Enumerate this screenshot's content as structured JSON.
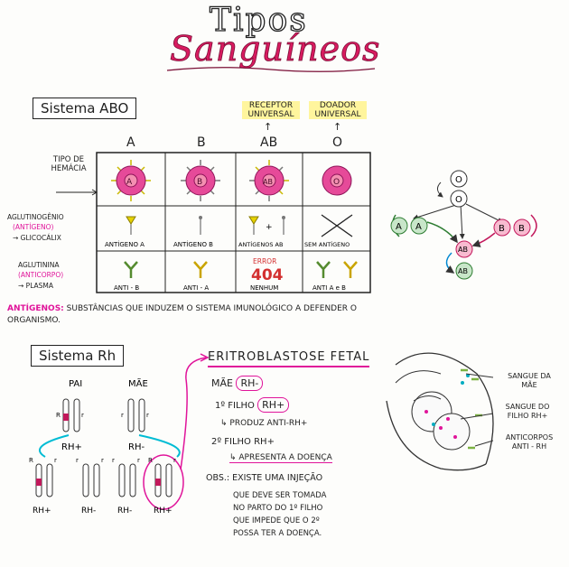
{
  "title": {
    "line1": "Tipos",
    "line2": "Sanguíneos"
  },
  "abo": {
    "label": "Sistema ABO",
    "receptor": "RECEPTOR UNIVERSAL",
    "doador": "DOADOR UNIVERSAL",
    "columns": [
      "A",
      "B",
      "AB",
      "O"
    ],
    "row_labels": {
      "tipo": "TIPO DE HEMÁCIA",
      "aglutinogenio": "AGLUTINOGÊNIO",
      "antigeno_paren": "(ANTÍGENO)",
      "glicocalix": "→ GLICOCÁLIX",
      "aglutinina": "AGLUTININA",
      "anticorpo_paren": "(ANTICORPO)",
      "plasma": "→ PLASMA"
    },
    "cells": {
      "hem": [
        "A",
        "B",
        "AB",
        "O"
      ],
      "antigenos": [
        "ANTÍGENO A",
        "ANTÍGENO B",
        "ANTÍGENOS AB",
        "SEM ANTÍGENO"
      ],
      "anticorpos": [
        "ANTI - B",
        "ANTI - A",
        "NENHUM",
        "ANTI A e B"
      ],
      "error": "ERROR",
      "code": "404",
      "plus": "+"
    },
    "note_key": "ANTÍGENOS:",
    "note_text": "SUBSTÂNCIAS QUE INDUZEM O SISTEMA IMUNOLÓGICO A DEFENDER O ORGANISMO."
  },
  "donation": {
    "nodes": [
      "O",
      "O",
      "A",
      "A",
      "B",
      "B",
      "AB",
      "AB"
    ]
  },
  "rh": {
    "label": "Sistema Rh",
    "pai": "PAI",
    "mae": "MÃE",
    "chrom_labels": [
      "R",
      "r",
      "r",
      "r"
    ],
    "parent_rh": [
      "RH+",
      "RH-"
    ],
    "child_labels": [
      "R",
      "r",
      "r",
      "r",
      "r",
      "r",
      "R",
      "r"
    ],
    "child_rh": [
      "RH+",
      "RH-",
      "RH-",
      "RH+"
    ]
  },
  "eritro": {
    "title": "ERITROBLASTOSE FETAL",
    "mae": "MÃE",
    "mae_rh": "RH-",
    "filho1": "1º FILHO",
    "filho1_rh": "RH+",
    "produz": "↳ PRODUZ ANTI-RH+",
    "filho2": "2º FILHO RH+",
    "apresenta": "↳ APRESENTA A DOENÇA",
    "obs": "OBS.: EXISTE UMA INJEÇÃO",
    "obs_lines": [
      "QUE DEVE SER TOMADA",
      "NO PARTO DO 1º FILHO",
      "QUE IMPEDE QUE O 2º",
      "POSSA TER A DOENÇA."
    ]
  },
  "fetus": {
    "sangue_mae": "SANGUE DA MÃE",
    "sangue_filho": "SANGUE DO FILHO RH+",
    "anticorpos": "ANTICORPOS ANTI - RH"
  }
}
